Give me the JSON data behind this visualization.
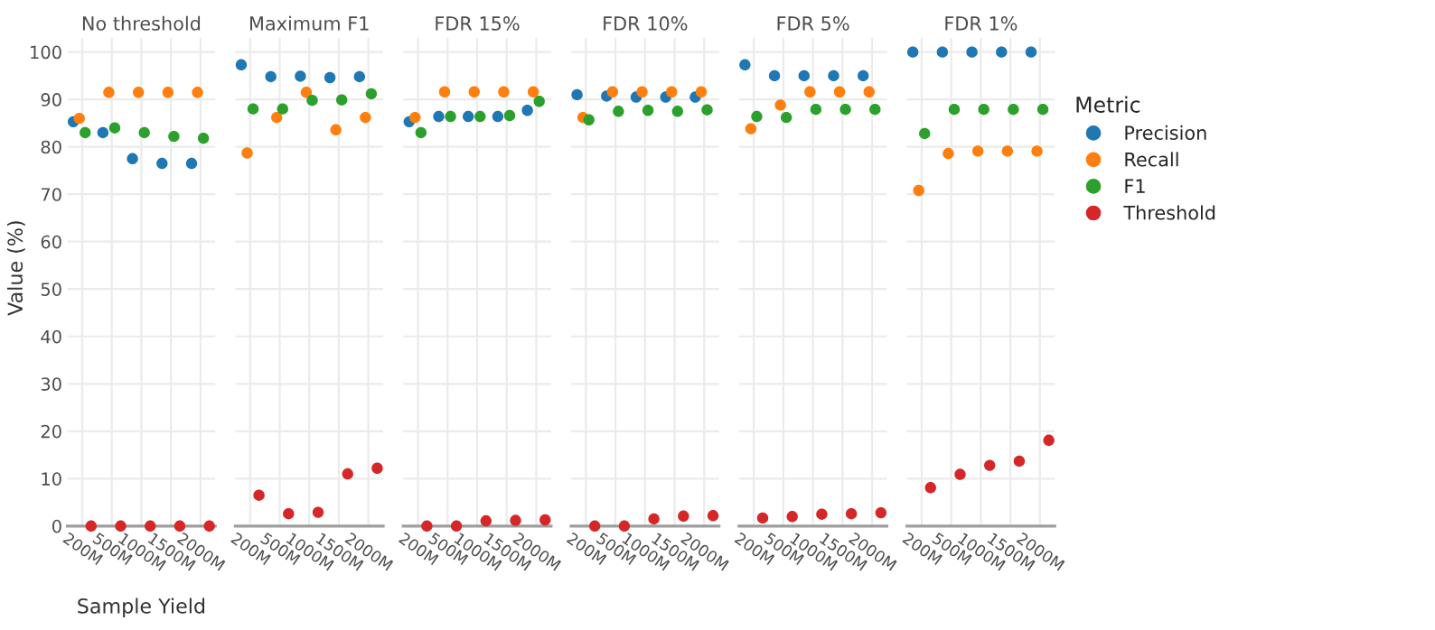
{
  "chart_data": [
    {
      "type": "scatter",
      "title": "No threshold",
      "xlabel": "Sample Yield",
      "ylabel": "Value (%)",
      "categories": [
        "200M",
        "500M",
        "1000M",
        "1500M",
        "2000M"
      ],
      "ylim": [
        0,
        103
      ],
      "yticks": [
        0,
        10,
        20,
        30,
        40,
        50,
        60,
        70,
        80,
        90,
        100
      ],
      "grid": true,
      "marker": "circle",
      "legend": false,
      "series": [
        {
          "color": "#1f77b4",
          "values": [
            85.3,
            83,
            77.5,
            76.5,
            76.5
          ]
        },
        {
          "color": "#ff7f0e",
          "values": [
            86,
            91.5,
            91.5,
            91.5,
            91.5
          ]
        },
        {
          "color": "#2ca02c",
          "values": [
            83,
            84,
            83,
            82.2,
            81.8
          ]
        },
        {
          "color": "#d62728",
          "values": [
            0,
            0,
            0,
            0,
            0
          ]
        }
      ]
    },
    {
      "type": "scatter",
      "title": "Maximum F1",
      "categories": [
        "200M",
        "500M",
        "1000M",
        "1500M",
        "2000M"
      ],
      "ylim": [
        0,
        103
      ],
      "yticks": [
        0,
        10,
        20,
        30,
        40,
        50,
        60,
        70,
        80,
        90,
        100
      ],
      "tick_labels": "x",
      "grid": true,
      "marker": "circle",
      "legend": false,
      "series": [
        {
          "color": "#1f77b4",
          "values": [
            97.3,
            94.8,
            94.9,
            94.6,
            94.8
          ]
        },
        {
          "color": "#ff7f0e",
          "values": [
            78.7,
            86.2,
            91.5,
            83.6,
            86.2
          ]
        },
        {
          "color": "#2ca02c",
          "values": [
            88,
            88,
            89.8,
            89.9,
            91.2
          ]
        },
        {
          "color": "#d62728",
          "values": [
            6.5,
            2.6,
            2.9,
            11,
            12.2
          ]
        }
      ]
    },
    {
      "type": "scatter",
      "title": "FDR 15%",
      "categories": [
        "200M",
        "500M",
        "1000M",
        "1500M",
        "2000M"
      ],
      "ylim": [
        0,
        103
      ],
      "yticks": [
        0,
        10,
        20,
        30,
        40,
        50,
        60,
        70,
        80,
        90,
        100
      ],
      "tick_labels": "x",
      "grid": true,
      "marker": "circle",
      "legend": false,
      "series": [
        {
          "color": "#1f77b4",
          "values": [
            85.3,
            86.4,
            86.4,
            86.4,
            87.7
          ]
        },
        {
          "color": "#ff7f0e",
          "values": [
            86.2,
            91.6,
            91.6,
            91.6,
            91.6
          ]
        },
        {
          "color": "#2ca02c",
          "values": [
            83,
            86.4,
            86.4,
            86.6,
            89.6
          ]
        },
        {
          "color": "#d62728",
          "values": [
            0,
            0,
            1.1,
            1.2,
            1.3
          ]
        }
      ]
    },
    {
      "type": "scatter",
      "title": "FDR 10%",
      "categories": [
        "200M",
        "500M",
        "1000M",
        "1500M",
        "2000M"
      ],
      "ylim": [
        0,
        103
      ],
      "yticks": [
        0,
        10,
        20,
        30,
        40,
        50,
        60,
        70,
        80,
        90,
        100
      ],
      "tick_labels": "x",
      "grid": true,
      "marker": "circle",
      "legend": false,
      "series": [
        {
          "color": "#1f77b4",
          "values": [
            91,
            90.7,
            90.5,
            90.5,
            90.5
          ]
        },
        {
          "color": "#ff7f0e",
          "values": [
            86.2,
            91.6,
            91.6,
            91.6,
            91.6
          ]
        },
        {
          "color": "#2ca02c",
          "values": [
            85.7,
            87.5,
            87.7,
            87.5,
            87.8
          ]
        },
        {
          "color": "#d62728",
          "values": [
            0,
            0,
            1.5,
            2.1,
            2.2
          ]
        }
      ]
    },
    {
      "type": "scatter",
      "title": "FDR 5%",
      "categories": [
        "200M",
        "500M",
        "1000M",
        "1500M",
        "2000M"
      ],
      "ylim": [
        0,
        103
      ],
      "yticks": [
        0,
        10,
        20,
        30,
        40,
        50,
        60,
        70,
        80,
        90,
        100
      ],
      "tick_labels": "x",
      "grid": true,
      "marker": "circle",
      "legend": false,
      "series": [
        {
          "color": "#1f77b4",
          "values": [
            97.3,
            95,
            95,
            95,
            95
          ]
        },
        {
          "color": "#ff7f0e",
          "values": [
            83.8,
            88.8,
            91.6,
            91.6,
            91.6
          ]
        },
        {
          "color": "#2ca02c",
          "values": [
            86.4,
            86.2,
            87.9,
            87.9,
            87.9
          ]
        },
        {
          "color": "#d62728",
          "values": [
            1.7,
            2.0,
            2.5,
            2.6,
            2.8
          ]
        }
      ]
    },
    {
      "type": "scatter",
      "title": "FDR 1%",
      "categories": [
        "200M",
        "500M",
        "1000M",
        "1500M",
        "2000M"
      ],
      "ylim": [
        0,
        103
      ],
      "yticks": [
        0,
        10,
        20,
        30,
        40,
        50,
        60,
        70,
        80,
        90,
        100
      ],
      "tick_labels": "x",
      "grid": true,
      "marker": "circle",
      "legend": "right",
      "legend_title": "Metric",
      "series": [
        {
          "name": "Precision",
          "color": "#1f77b4",
          "values": [
            100,
            100,
            100,
            100,
            100
          ]
        },
        {
          "name": "Recall",
          "color": "#ff7f0e",
          "values": [
            70.8,
            78.6,
            79.1,
            79.1,
            79.1
          ]
        },
        {
          "name": "F1",
          "color": "#2ca02c",
          "values": [
            82.8,
            87.9,
            87.9,
            87.9,
            87.9
          ]
        },
        {
          "name": "Threshold",
          "color": "#d62728",
          "values": [
            8.1,
            10.9,
            12.8,
            13.7,
            18.1
          ]
        }
      ]
    }
  ]
}
